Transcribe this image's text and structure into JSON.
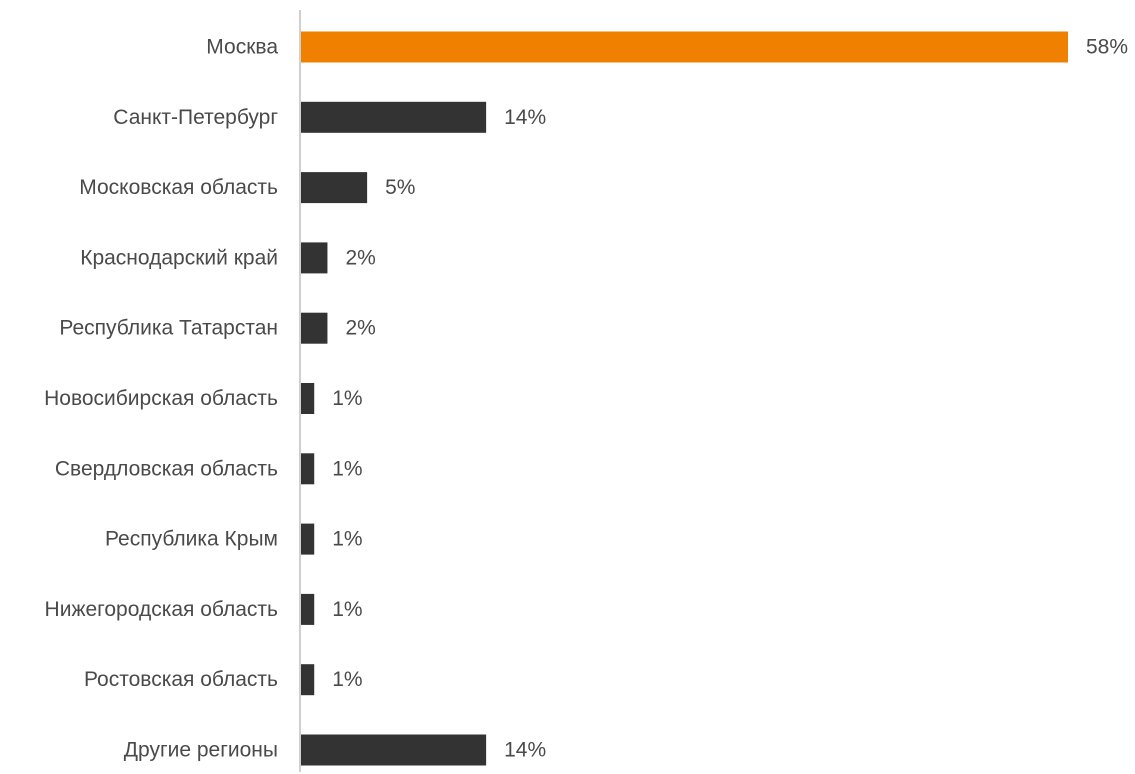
{
  "chart_data": {
    "type": "bar",
    "orientation": "horizontal",
    "categories": [
      "Москва",
      "Санкт-Петербург",
      "Московская область",
      "Краснодарский край",
      "Республика Татарстан",
      "Новосибирская область",
      "Свердловская область",
      "Республика Крым",
      "Нижегородская область",
      "Ростовская область",
      "Другие регионы"
    ],
    "values": [
      58,
      14,
      5,
      2,
      2,
      1,
      1,
      1,
      1,
      1,
      14
    ],
    "value_labels": [
      "58%",
      "14%",
      "5%",
      "2%",
      "2%",
      "1%",
      "1%",
      "1%",
      "1%",
      "1%",
      "14%"
    ],
    "bar_colors": [
      "#f08000",
      "#333333",
      "#333333",
      "#333333",
      "#333333",
      "#333333",
      "#333333",
      "#333333",
      "#333333",
      "#333333",
      "#333333"
    ],
    "axis_color": "#d0d0d0",
    "title": "",
    "xlabel": "",
    "ylabel": "",
    "xlim": [
      0,
      58
    ],
    "grid": false,
    "legend": "none"
  }
}
